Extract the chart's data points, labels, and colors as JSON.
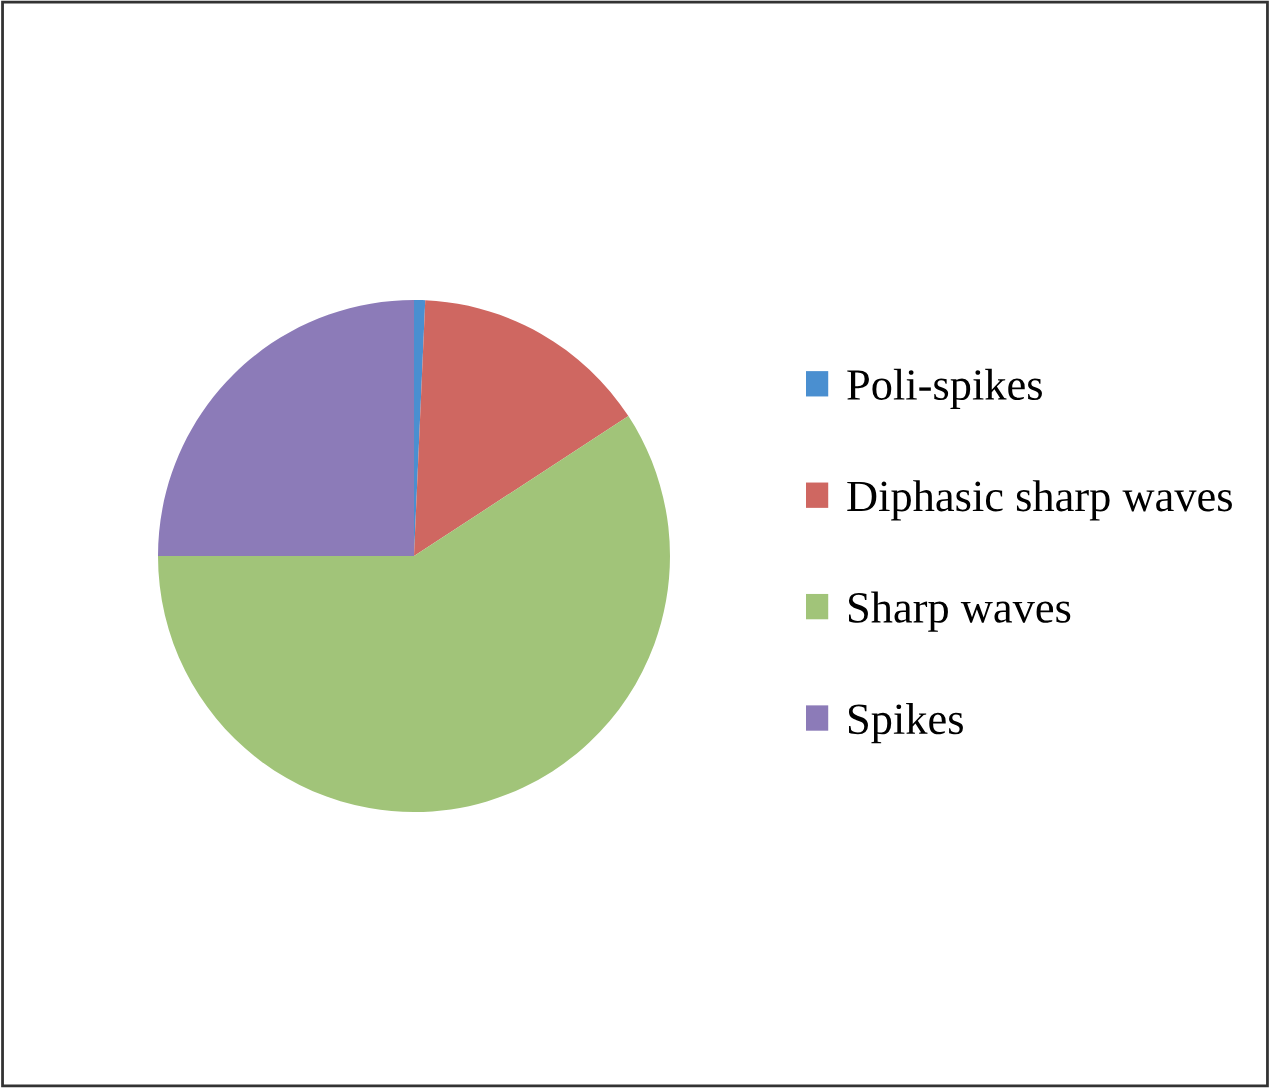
{
  "chart_data": {
    "type": "pie",
    "categories": [
      "Poli-spikes",
      "Diphasic sharp waves",
      "Sharp waves",
      "Spikes"
    ],
    "values": [
      0.7,
      15.1,
      59.2,
      25
    ],
    "colors": [
      "#4a8fd0",
      "#cf6761",
      "#a1c479",
      "#8c7bb8"
    ],
    "legend": "right"
  }
}
